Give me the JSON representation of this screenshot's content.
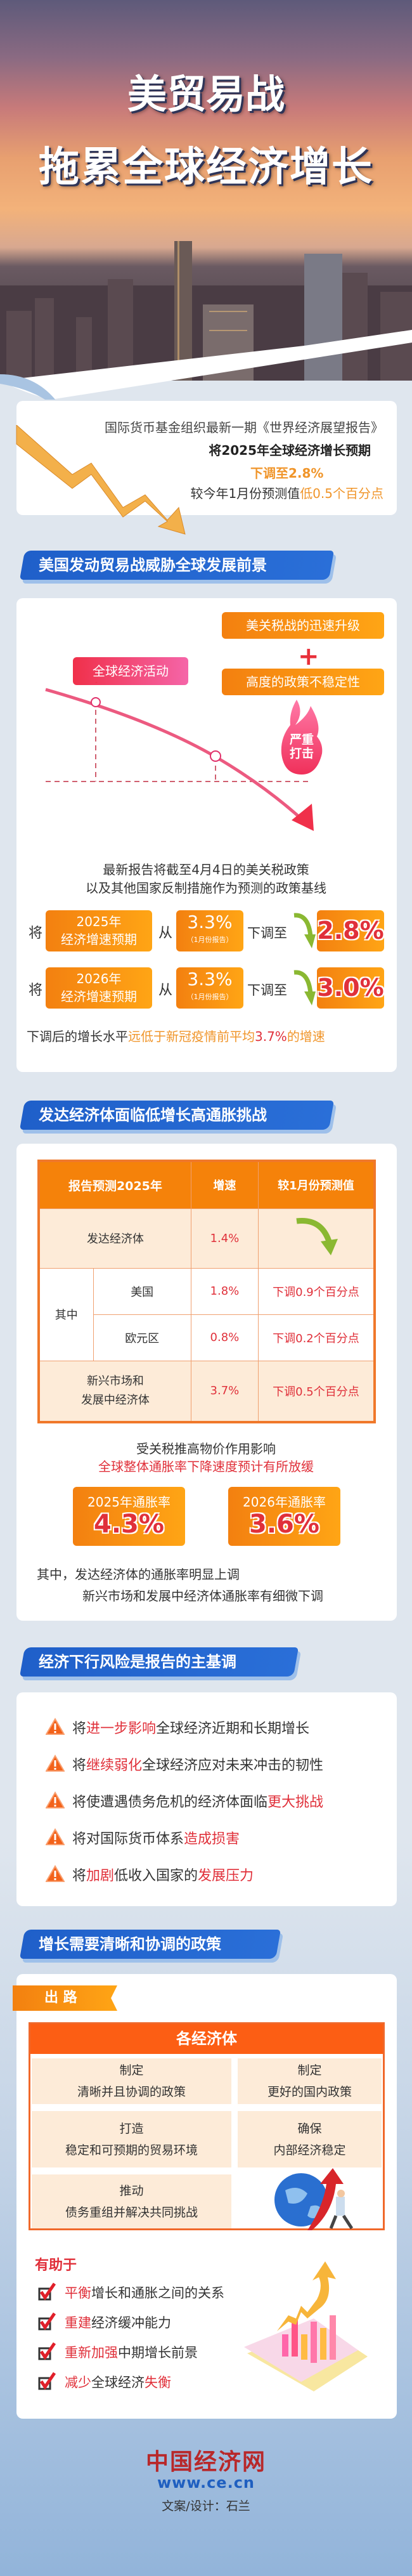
{
  "header": {
    "title_line1": "美贸易战",
    "title_line2": "拖累全球经济增长"
  },
  "intro": {
    "line1": "国际货币基金组织最新一期《世界经济展望报告》",
    "line2": "将2025年全球经济增长预期",
    "line3": "下调至2.8%",
    "line4_prefix": "较今年1月份预测值",
    "line4_highlight": "低0.5个百分点"
  },
  "section1": {
    "title": "美国发动贸易战威胁全球发展前景",
    "factor1": "美关税战的迅速升级",
    "factor2": "高度的政策不稳定性",
    "flame_text_1": "严重",
    "flame_text_2": "打击",
    "curve_label": "全球经济活动",
    "baseline_line1": "最新报告将截至4月4日的美关税政策",
    "baseline_line2": "以及其他国家反制措施作为预测的政策基线",
    "rows": [
      {
        "prefix": "将",
        "year": "2025年",
        "label": "经济增速预期",
        "from": "从",
        "old": "3.3%",
        "old_note": "（1月份报告）",
        "verb": "下调至",
        "new": "2.8%"
      },
      {
        "prefix": "将",
        "year": "2026年",
        "label": "经济增速预期",
        "from": "从",
        "old": "3.3%",
        "old_note": "（1月份报告）",
        "verb": "下调至",
        "new": "3.0%"
      }
    ],
    "footer_prefix": "下调后的增长水平",
    "footer_highlight": "远低于新冠疫情前平均",
    "footer_value": "3.7%",
    "footer_suffix": "的增速"
  },
  "section2": {
    "title": "发达经济体面临低增长高通胀挑战",
    "table": {
      "headers": [
        "报告预测2025年",
        "增速",
        "较1月份预测值"
      ],
      "group_label": "其中",
      "rows": [
        {
          "name": "发达经济体",
          "rate": "1.4%",
          "change": ""
        },
        {
          "name": "美国",
          "rate": "1.8%",
          "change": "下调0.9个百分点"
        },
        {
          "name": "欧元区",
          "rate": "0.8%",
          "change": "下调0.2个百分点"
        },
        {
          "name": "新兴市场和发展中经济体",
          "name_l1": "新兴市场和",
          "name_l2": "发展中经济体",
          "rate": "3.7%",
          "change": "下调0.5个百分点"
        }
      ]
    },
    "inflation_intro": "受关税推高物价作用影响",
    "inflation_highlight": "全球整体通胀率下降速度预计有所放缓",
    "inflation": [
      {
        "label": "2025年通胀率",
        "value": "4.3%"
      },
      {
        "label": "2026年通胀率",
        "value": "3.6%"
      }
    ],
    "note_line1": "其中，发达经济体的通胀率明显上调",
    "note_line2": "新兴市场和发展中经济体通胀率有细微下调"
  },
  "section3": {
    "title": "经济下行风险是报告的主基调",
    "items": [
      [
        {
          "t": "将",
          "h": false
        },
        {
          "t": "进一步影响",
          "h": true
        },
        {
          "t": "全球经济近期和长期增长",
          "h": false
        }
      ],
      [
        {
          "t": "将",
          "h": false
        },
        {
          "t": "继续弱化",
          "h": true
        },
        {
          "t": "全球经济应对未来冲击的韧性",
          "h": false
        }
      ],
      [
        {
          "t": "将使遭遇债务危机的经济体面临",
          "h": false
        },
        {
          "t": "更大挑战",
          "h": true
        }
      ],
      [
        {
          "t": "将对国际货币体系",
          "h": false
        },
        {
          "t": "造成损害",
          "h": true
        }
      ],
      [
        {
          "t": "将",
          "h": false
        },
        {
          "t": "加剧",
          "h": true
        },
        {
          "t": "低收入国家的",
          "h": false
        },
        {
          "t": "发展压力",
          "h": true
        }
      ]
    ]
  },
  "section4": {
    "title": "增长需要清晰和协调的政策",
    "ribbon": "出 路",
    "table_title": "各经济体",
    "cells": [
      {
        "verb": "制定",
        "text": "清晰并且协调的政策"
      },
      {
        "verb": "制定",
        "text": "更好的国内政策"
      },
      {
        "verb": "打造",
        "text": "稳定和可预期的贸易环境"
      },
      {
        "verb": "确保",
        "text": "内部经济稳定"
      },
      {
        "verb": "推动",
        "text": "债务重组并解决共同挑战"
      }
    ],
    "helps_title": "有助于",
    "helps": [
      [
        {
          "t": "平衡",
          "h": true
        },
        {
          "t": "增长和通胀之间的关系",
          "h": false
        }
      ],
      [
        {
          "t": "重建",
          "h": true
        },
        {
          "t": "经济缓冲能力",
          "h": false
        }
      ],
      [
        {
          "t": "重新加强",
          "h": true
        },
        {
          "t": "中期增长前景",
          "h": false
        }
      ],
      [
        {
          "t": "减少",
          "h": true
        },
        {
          "t": "全球经济",
          "h": false
        },
        {
          "t": "失衡",
          "h": true
        }
      ]
    ]
  },
  "footer": {
    "logo_text": "中国经济网",
    "logo_url": "www.ce.cn",
    "credit": "文案/设计：石兰"
  },
  "colors": {
    "blue": "#1f5fc9",
    "orange": "#f38010",
    "red": "#e0303a",
    "green": "#8ab832"
  }
}
